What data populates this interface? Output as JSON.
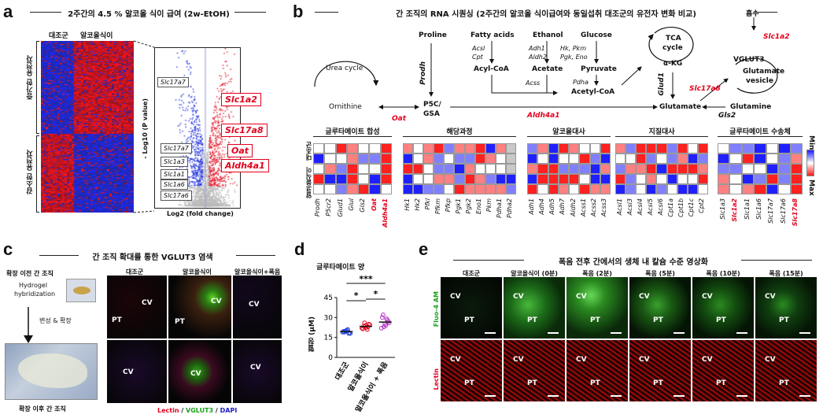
{
  "panel_a": {
    "label": "a",
    "title": "2주간의 4.5 % 알코올 식이 급여 (2w-EtOH)",
    "col_control": "대조군",
    "col_alcohol": "알코올식이",
    "row_up": "증가한 유전자",
    "row_down": "감소한 유전자",
    "volcano_ylabel": "- Log10 (P value)",
    "volcano_xlabel": "Log2 (fold change)",
    "volcano_down_genes": [
      "Slc17a7",
      "Slc17a7",
      "Slc1a3",
      "Slc1a1",
      "Slc1a6",
      "Slc17a6"
    ],
    "volcano_up_genes": [
      "Slc1a2",
      "Slc17a8",
      "Oat",
      "Aldh4a1"
    ]
  },
  "panel_b": {
    "label": "b",
    "title": "간 조직의 RNA 시퀀싱 (2주간의 알코올 식이급여와 동일섭취 대조군의 유전자 변화 비교)",
    "pathway": {
      "proline": "Proline",
      "prodh": "Prodh",
      "urea_cycle": "Urea cycle",
      "ornithine": "Ornithine",
      "oat": "Oat",
      "p5c": "P5C/",
      "gsa": "GSA",
      "aldh4a1": "Aldh4a1",
      "fatty_acids": "Fatty acids",
      "acsl": "Acsl",
      "cpt": "Cpt",
      "acyl_coa": "Acyl-CoA",
      "ethanol": "Ethanol",
      "adh1": "Adh1",
      "aldh2": "Aldh2",
      "acetate": "Acetate",
      "acss": "Acss",
      "glucose": "Glucose",
      "hk_pkm": "Hk, Pkm",
      "pgk_eno": "Pgk, Eno",
      "pyruvate": "Pyruvate",
      "pdha": "Pdha",
      "acetyl_coa": "Acetyl-CoA",
      "tca": "TCA",
      "cycle": "cycle",
      "akg": "α-KG",
      "glud1": "Glud1",
      "glutamate": "Glutamate",
      "gls2": "Gls2",
      "glutamine": "Glutamine",
      "uptake": "흡수",
      "slc1a2": "Slc1a2",
      "vglut3": "VGLUT3",
      "glutamate_vesicle_1": "Glutamate",
      "glutamate_vesicle_2": "vesicle",
      "slc17a8": "Slc17a8"
    },
    "heatmap_row_label_top": "알코올식이",
    "heatmap_row_label_bottom": "대조군",
    "legend_min": "Min",
    "legend_max": "Max",
    "groups": [
      {
        "title": "글루타메이트 합성",
        "genes": [
          "Prodh",
          "P5cr2",
          "Glud1",
          "Glul",
          "Gls2",
          "Oat",
          "Aldh4a1"
        ],
        "red_genes": [
          "Oat",
          "Aldh4a1"
        ]
      },
      {
        "title": "해당과정",
        "genes": [
          "Hk1",
          "Hk2",
          "Pfkl",
          "Pfkm",
          "Pfkp",
          "Pgk1",
          "Pgk2",
          "Eno1",
          "Pkm",
          "Pdha1",
          "Pdha2"
        ],
        "red_genes": []
      },
      {
        "title": "알코올대사",
        "genes": [
          "Adh1",
          "Adh4",
          "Adh5",
          "Adh7",
          "Aldh2",
          "Acss1",
          "Acss2",
          "Acss3"
        ],
        "red_genes": []
      },
      {
        "title": "지질대사",
        "genes": [
          "Acsl1",
          "Acsl3",
          "Acsl4",
          "Acsl5",
          "Acsl6",
          "Cpt1a",
          "Cpt1b",
          "Cpt1c",
          "Cpt2"
        ],
        "red_genes": []
      },
      {
        "title": "글루타메이트 수송체",
        "genes": [
          "Slc1a3",
          "Slc1a2",
          "Slc1a1",
          "Slc1a6",
          "Slc17a7",
          "Slc17a6",
          "Slc17a8"
        ],
        "red_genes": [
          "Slc1a2",
          "Slc17a8"
        ]
      }
    ]
  },
  "panel_c": {
    "label": "c",
    "title": "간 조직 확대를 통한 VGLUT3 염색",
    "before": "확장 이전 간 조직",
    "hydrogel_1": "Hydrogel",
    "hydrogel_2": "hybridization",
    "step": "변성 & 확장",
    "after": "확장 이후 간 조직",
    "col_control": "대조군",
    "col_alcohol": "알코올식이",
    "col_binge": "알코올식이+폭음",
    "cv": "CV",
    "pt": "PT",
    "legend_lectin": "Lectin",
    "legend_slash1": " / ",
    "legend_vglut3": "VGLUT3",
    "legend_slash2": " / ",
    "legend_dapi": "DAPI"
  },
  "panel_d": {
    "label": "d",
    "title": "글루타메이트 양",
    "ylabel": "혈청 (μM)",
    "sig_top": "***",
    "sig_left": "*",
    "sig_right": "*",
    "chart_data": {
      "type": "scatter",
      "categories": [
        "대조군",
        "알코올식이",
        "알코올식이 + 폭음"
      ],
      "ylabel": "혈청 (μM)",
      "ylim": [
        0,
        45
      ],
      "yticks": [
        0,
        15,
        30,
        45
      ],
      "series": [
        {
          "values": [
            19,
            18,
            20,
            19.5,
            18.5,
            20.5,
            19,
            18,
            21,
            19.8
          ]
        },
        {
          "values": [
            22,
            23,
            24,
            21.5,
            25,
            22.5,
            23.5,
            24.5,
            21,
            26
          ]
        },
        {
          "values": [
            22,
            28,
            25,
            30,
            27,
            24,
            32,
            26,
            29,
            23
          ]
        }
      ],
      "means": [
        19.4,
        23.3,
        26.6
      ],
      "colors": [
        "#1f3fd6",
        "#e3001b",
        "#b030c0"
      ]
    }
  },
  "panel_e": {
    "label": "e",
    "title": "폭음 전후 간에서의 생체 내 칼슘 수준 영상화",
    "columns": [
      "대조군",
      "알코올식이 (0분)",
      "폭음 (2분)",
      "폭음 (5분)",
      "폭음 (10분)",
      "폭음 (15분)"
    ],
    "row_fluo": "Fluo-4 AM",
    "row_lectin": "Lectin",
    "cv": "CV",
    "pt": "PT"
  }
}
